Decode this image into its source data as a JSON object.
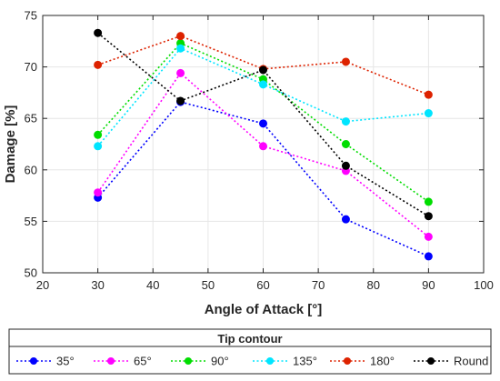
{
  "chart_data": {
    "type": "line",
    "xlabel": "Angle of Attack [°]",
    "ylabel": "Damage [%]",
    "xlim": [
      20,
      100
    ],
    "ylim": [
      50,
      75
    ],
    "xticks": [
      20,
      30,
      40,
      50,
      60,
      70,
      80,
      90,
      100
    ],
    "yticks": [
      50,
      55,
      60,
      65,
      70,
      75
    ],
    "grid": true,
    "line_style": "dotted",
    "marker": "circle",
    "x": [
      30,
      45,
      60,
      75,
      90
    ],
    "series": [
      {
        "name": "35°",
        "color": "#0000ff",
        "values": [
          57.3,
          66.6,
          64.5,
          55.2,
          51.6
        ]
      },
      {
        "name": "65°",
        "color": "#ff00ff",
        "values": [
          57.8,
          69.4,
          62.3,
          59.9,
          53.5
        ]
      },
      {
        "name": "90°",
        "color": "#00dd00",
        "values": [
          63.4,
          72.3,
          68.8,
          62.5,
          56.9
        ]
      },
      {
        "name": "135°",
        "color": "#00e5ff",
        "values": [
          62.3,
          71.8,
          68.3,
          64.7,
          65.5
        ]
      },
      {
        "name": "180°",
        "color": "#dd2200",
        "values": [
          70.2,
          73.0,
          69.8,
          70.5,
          67.3
        ]
      },
      {
        "name": "Round",
        "color": "#000000",
        "values": [
          73.3,
          66.7,
          69.7,
          60.4,
          55.5
        ]
      }
    ],
    "legend": {
      "title": "Tip contour",
      "placement": "bottom"
    }
  }
}
